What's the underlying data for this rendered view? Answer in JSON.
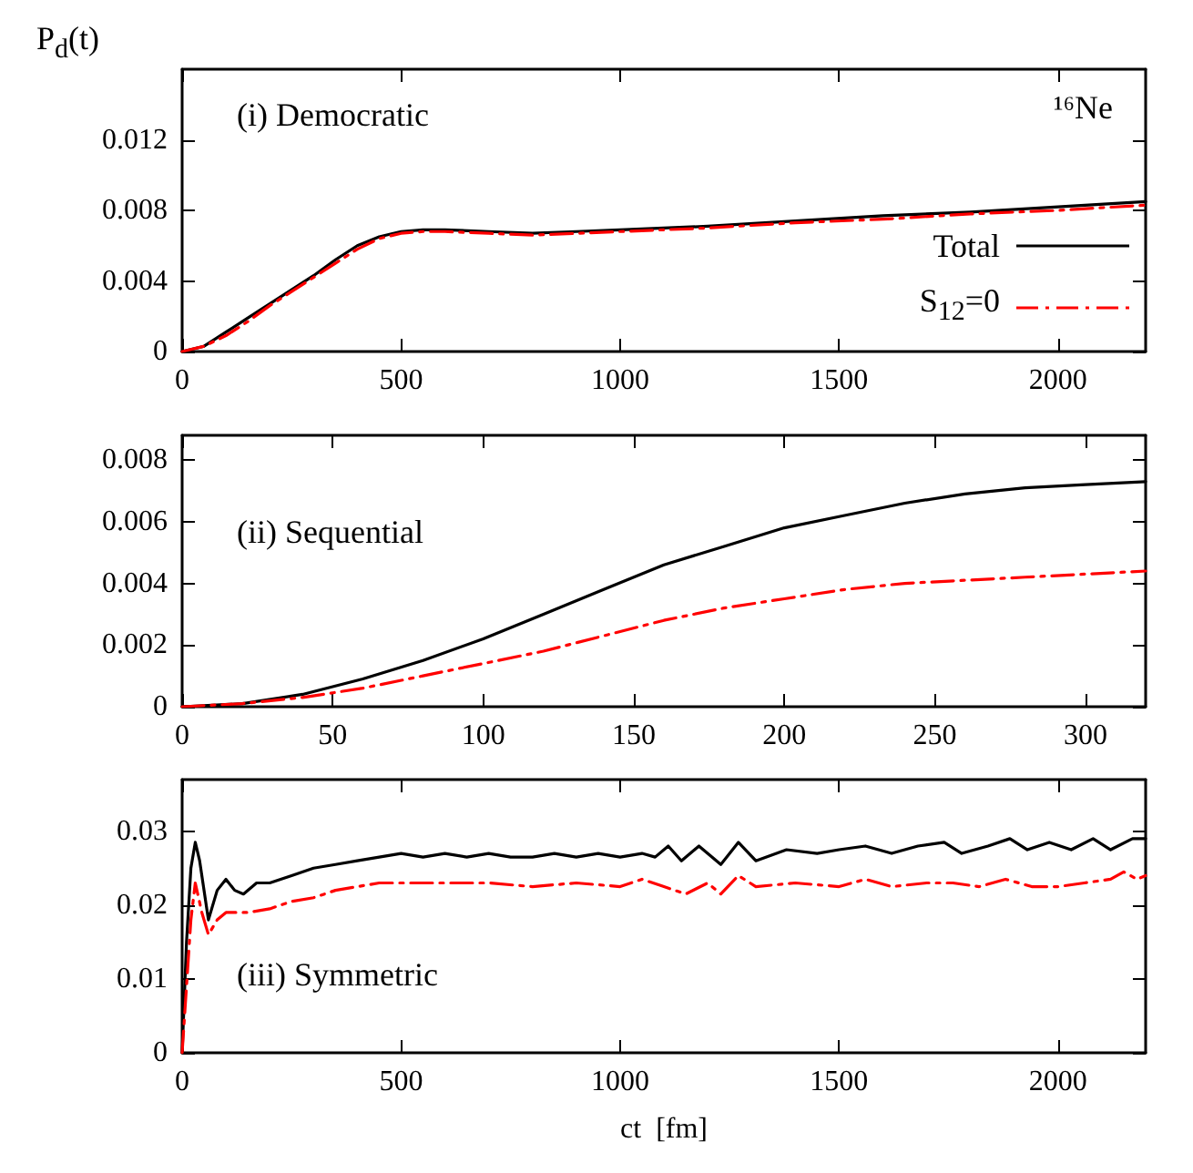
{
  "chart_data": [
    {
      "type": "line",
      "ylabel": "P$_{d}$(t)",
      "annotations": [
        "(i) Democratic",
        "¹⁶Ne"
      ],
      "xlim": [
        0,
        2200
      ],
      "xticks": [
        0,
        500,
        1000,
        1500,
        2000
      ],
      "ylim": [
        0,
        0.016
      ],
      "yticks": [
        0,
        0.004,
        0.008,
        0.012
      ],
      "grid": false,
      "legend": "bottom right",
      "series": [
        {
          "name": "Total",
          "color": "#000000",
          "line_style": "solid",
          "x": [
            0,
            50,
            100,
            150,
            200,
            250,
            300,
            350,
            400,
            450,
            500,
            550,
            600,
            700,
            800,
            900,
            1000,
            1200,
            1400,
            1600,
            1800,
            2000,
            2200
          ],
          "values": [
            0,
            0.0003,
            0.0011,
            0.0019,
            0.0027,
            0.0035,
            0.0043,
            0.0052,
            0.006,
            0.0065,
            0.0068,
            0.0069,
            0.0069,
            0.0068,
            0.0067,
            0.0068,
            0.0069,
            0.0071,
            0.0074,
            0.0077,
            0.0079,
            0.0082,
            0.0085
          ]
        },
        {
          "name": "S$_{12}$=0",
          "color": "#ff0000",
          "line_style": "dashed",
          "x": [
            0,
            50,
            100,
            150,
            200,
            250,
            300,
            350,
            400,
            450,
            500,
            550,
            600,
            700,
            800,
            900,
            1000,
            1200,
            1400,
            1600,
            1800,
            2000,
            2200
          ],
          "values": [
            0,
            0.0003,
            0.0009,
            0.0017,
            0.0026,
            0.0034,
            0.0042,
            0.005,
            0.0058,
            0.0064,
            0.0067,
            0.0068,
            0.0068,
            0.0067,
            0.0066,
            0.0067,
            0.0068,
            0.007,
            0.0073,
            0.0075,
            0.0078,
            0.008,
            0.0083
          ]
        }
      ]
    },
    {
      "type": "line",
      "annotations": [
        "(ii) Sequential"
      ],
      "xlim": [
        0,
        320
      ],
      "xticks": [
        0,
        50,
        100,
        150,
        200,
        250,
        300
      ],
      "ylim": [
        0,
        0.0088
      ],
      "yticks": [
        0,
        0.002,
        0.004,
        0.006,
        0.008
      ],
      "grid": false,
      "series": [
        {
          "color": "#000000",
          "line_style": "solid",
          "x": [
            0,
            20,
            40,
            60,
            80,
            100,
            120,
            140,
            160,
            180,
            200,
            220,
            240,
            260,
            280,
            300,
            320
          ],
          "values": [
            0,
            0.0001,
            0.0004,
            0.0009,
            0.0015,
            0.0022,
            0.003,
            0.0038,
            0.0046,
            0.0052,
            0.0058,
            0.0062,
            0.0066,
            0.0069,
            0.0071,
            0.0072,
            0.0073
          ]
        },
        {
          "color": "#ff0000",
          "line_style": "dashed",
          "x": [
            0,
            20,
            40,
            60,
            80,
            100,
            120,
            140,
            160,
            180,
            200,
            220,
            240,
            260,
            280,
            300,
            320
          ],
          "values": [
            0,
            0.0001,
            0.0003,
            0.0006,
            0.001,
            0.0014,
            0.0018,
            0.0023,
            0.0028,
            0.0032,
            0.0035,
            0.0038,
            0.004,
            0.0041,
            0.0042,
            0.0043,
            0.0044
          ]
        }
      ]
    },
    {
      "type": "line",
      "xlabel": "ct  [fm]",
      "annotations": [
        "(iii) Symmetric"
      ],
      "xlim": [
        0,
        2200
      ],
      "xticks": [
        0,
        500,
        1000,
        1500,
        2000
      ],
      "ylim": [
        0,
        0.037
      ],
      "yticks": [
        0,
        0.01,
        0.02,
        0.03
      ],
      "grid": false,
      "series": [
        {
          "color": "#000000",
          "line_style": "solid",
          "x": [
            0,
            10,
            20,
            30,
            40,
            60,
            80,
            100,
            120,
            140,
            170,
            200,
            250,
            300,
            350,
            400,
            450,
            500,
            550,
            600,
            650,
            700,
            750,
            800,
            850,
            900,
            950,
            1000,
            1050,
            1080,
            1110,
            1140,
            1180,
            1230,
            1270,
            1310,
            1380,
            1450,
            1500,
            1560,
            1620,
            1680,
            1740,
            1780,
            1840,
            1890,
            1930,
            1980,
            2030,
            2080,
            2120,
            2170,
            2200
          ],
          "values": [
            0,
            0.015,
            0.025,
            0.0285,
            0.026,
            0.018,
            0.022,
            0.0235,
            0.022,
            0.0215,
            0.023,
            0.023,
            0.024,
            0.025,
            0.0255,
            0.026,
            0.0265,
            0.027,
            0.0265,
            0.027,
            0.0265,
            0.027,
            0.0265,
            0.0265,
            0.027,
            0.0265,
            0.027,
            0.0265,
            0.027,
            0.0265,
            0.028,
            0.026,
            0.028,
            0.0255,
            0.0285,
            0.026,
            0.0275,
            0.027,
            0.0275,
            0.028,
            0.027,
            0.028,
            0.0285,
            0.027,
            0.028,
            0.029,
            0.0275,
            0.0285,
            0.0275,
            0.029,
            0.0275,
            0.029,
            0.029
          ]
        },
        {
          "color": "#ff0000",
          "line_style": "dashed",
          "x": [
            0,
            20,
            30,
            45,
            60,
            80,
            100,
            150,
            200,
            250,
            300,
            350,
            400,
            450,
            500,
            600,
            700,
            800,
            900,
            1000,
            1050,
            1100,
            1150,
            1200,
            1230,
            1270,
            1310,
            1400,
            1500,
            1560,
            1620,
            1700,
            1760,
            1820,
            1880,
            1940,
            2000,
            2060,
            2120,
            2150,
            2180,
            2200
          ],
          "values": [
            0,
            0.018,
            0.023,
            0.019,
            0.016,
            0.018,
            0.019,
            0.019,
            0.0195,
            0.0205,
            0.021,
            0.022,
            0.0225,
            0.023,
            0.023,
            0.023,
            0.023,
            0.0225,
            0.023,
            0.0225,
            0.0235,
            0.0225,
            0.0215,
            0.023,
            0.0215,
            0.024,
            0.0225,
            0.023,
            0.0225,
            0.0235,
            0.0225,
            0.023,
            0.023,
            0.0225,
            0.0235,
            0.0225,
            0.0225,
            0.023,
            0.0235,
            0.0245,
            0.0235,
            0.024
          ]
        }
      ]
    }
  ]
}
